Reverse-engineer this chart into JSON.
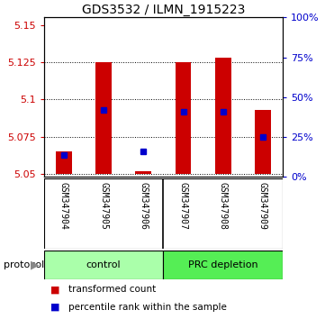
{
  "title": "GDS3532 / ILMN_1915223",
  "samples": [
    "GSM347904",
    "GSM347905",
    "GSM347906",
    "GSM347907",
    "GSM347908",
    "GSM347909"
  ],
  "red_bar_bottom": 5.05,
  "red_bar_top": [
    5.065,
    5.125,
    5.052,
    5.125,
    5.128,
    5.093
  ],
  "blue_dot_y": [
    5.063,
    5.093,
    5.065,
    5.092,
    5.092,
    5.075
  ],
  "ylim": [
    5.048,
    5.155
  ],
  "yticks_left": [
    5.05,
    5.075,
    5.1,
    5.125,
    5.15
  ],
  "yticks_right": [
    0,
    25,
    50,
    75,
    100
  ],
  "bar_color": "#CC0000",
  "dot_color": "#0000CC",
  "plot_bg": "#FFFFFF",
  "sample_bg": "#C8C8C8",
  "control_color": "#AAFFAA",
  "prc_color": "#55EE55",
  "legend_red": "transformed count",
  "legend_blue": "percentile rank within the sample",
  "title_fontsize": 10,
  "tick_fontsize": 8,
  "sample_fontsize": 7,
  "group_fontsize": 8,
  "legend_fontsize": 7.5
}
